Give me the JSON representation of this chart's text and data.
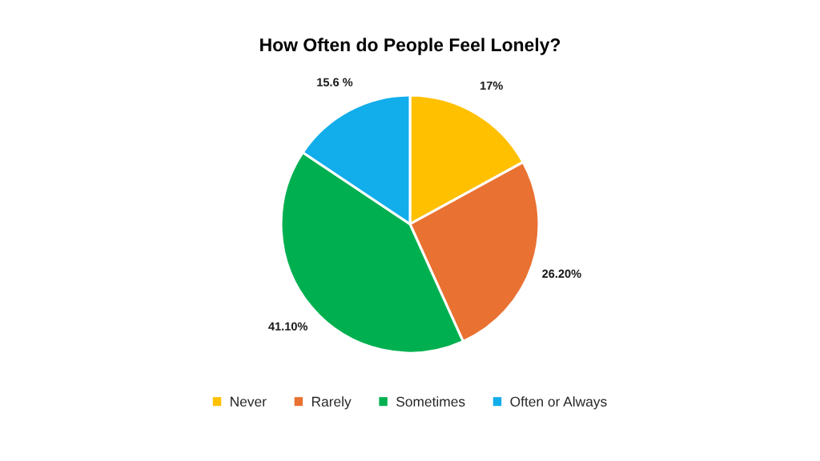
{
  "chart_data": {
    "type": "pie",
    "title": "How Often do People Feel Lonely?",
    "categories": [
      "Never",
      "Rarely",
      "Sometimes",
      "Often or Always"
    ],
    "values": [
      17,
      26.2,
      41.1,
      15.6
    ],
    "colors": [
      "#ffc000",
      "#e97132",
      "#00b050",
      "#12adeb"
    ],
    "value_labels": [
      "17%",
      "26.20%",
      "41.10%",
      "15.6 %"
    ],
    "legend": "bottom"
  }
}
